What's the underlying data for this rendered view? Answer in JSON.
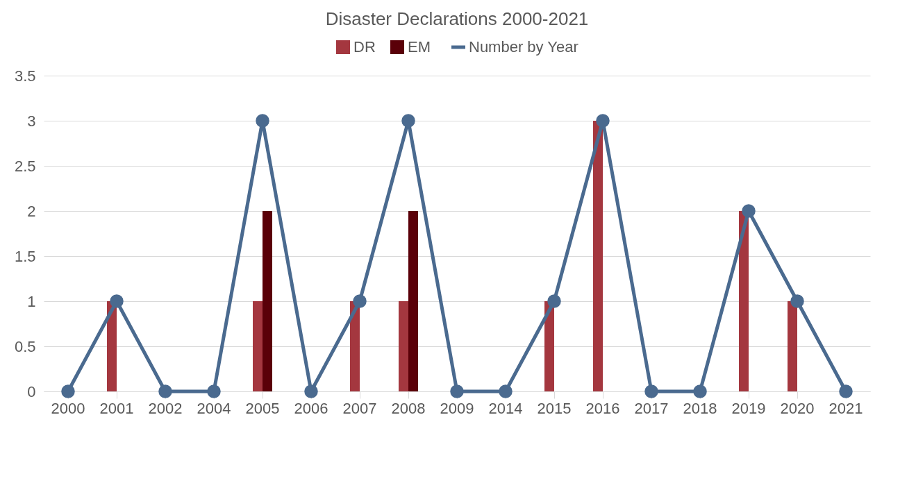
{
  "chart_data": {
    "type": "bar",
    "title": "Disaster Declarations 2000-2021",
    "categories": [
      "2000",
      "2001",
      "2002",
      "2004",
      "2005",
      "2006",
      "2007",
      "2008",
      "2009",
      "2014",
      "2015",
      "2016",
      "2017",
      "2018",
      "2019",
      "2020",
      "2021"
    ],
    "series": [
      {
        "name": "DR",
        "color": "#a4373f",
        "values": [
          0,
          1,
          0,
          0,
          1,
          0,
          1,
          1,
          0,
          0,
          1,
          3,
          0,
          0,
          2,
          1,
          0
        ]
      },
      {
        "name": "EM",
        "color": "#5a0008",
        "values": [
          0,
          0,
          0,
          0,
          2,
          0,
          0,
          2,
          0,
          0,
          0,
          0,
          0,
          0,
          0,
          0,
          0
        ]
      },
      {
        "name": "Number by Year",
        "type": "line",
        "color": "#4a6a8f",
        "values": [
          0,
          1,
          0,
          0,
          3,
          0,
          1,
          3,
          0,
          0,
          1,
          3,
          0,
          0,
          2,
          1,
          0
        ]
      }
    ],
    "ylim": [
      0,
      3.5
    ],
    "yticks": [
      0,
      0.5,
      1,
      1.5,
      2,
      2.5,
      3,
      3.5
    ],
    "grid": "y",
    "legend": "top",
    "marker": "circle",
    "line_style": "solid"
  }
}
